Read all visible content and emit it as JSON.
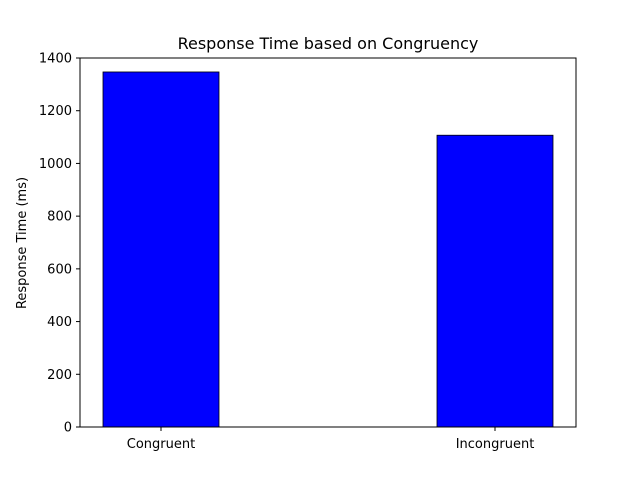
{
  "chart_data": {
    "type": "bar",
    "title": "Response Time based on Congruency",
    "xlabel": "",
    "ylabel": "Response Time (ms)",
    "categories": [
      "Congruent",
      "Incongruent"
    ],
    "values": [
      1347,
      1107
    ],
    "ylim": [
      0,
      1400
    ],
    "yticks": [
      0,
      200,
      400,
      600,
      800,
      1000,
      1200,
      1400
    ],
    "bar_color": "#0000ff",
    "bar_edge_color": "#000000",
    "grid": false
  }
}
